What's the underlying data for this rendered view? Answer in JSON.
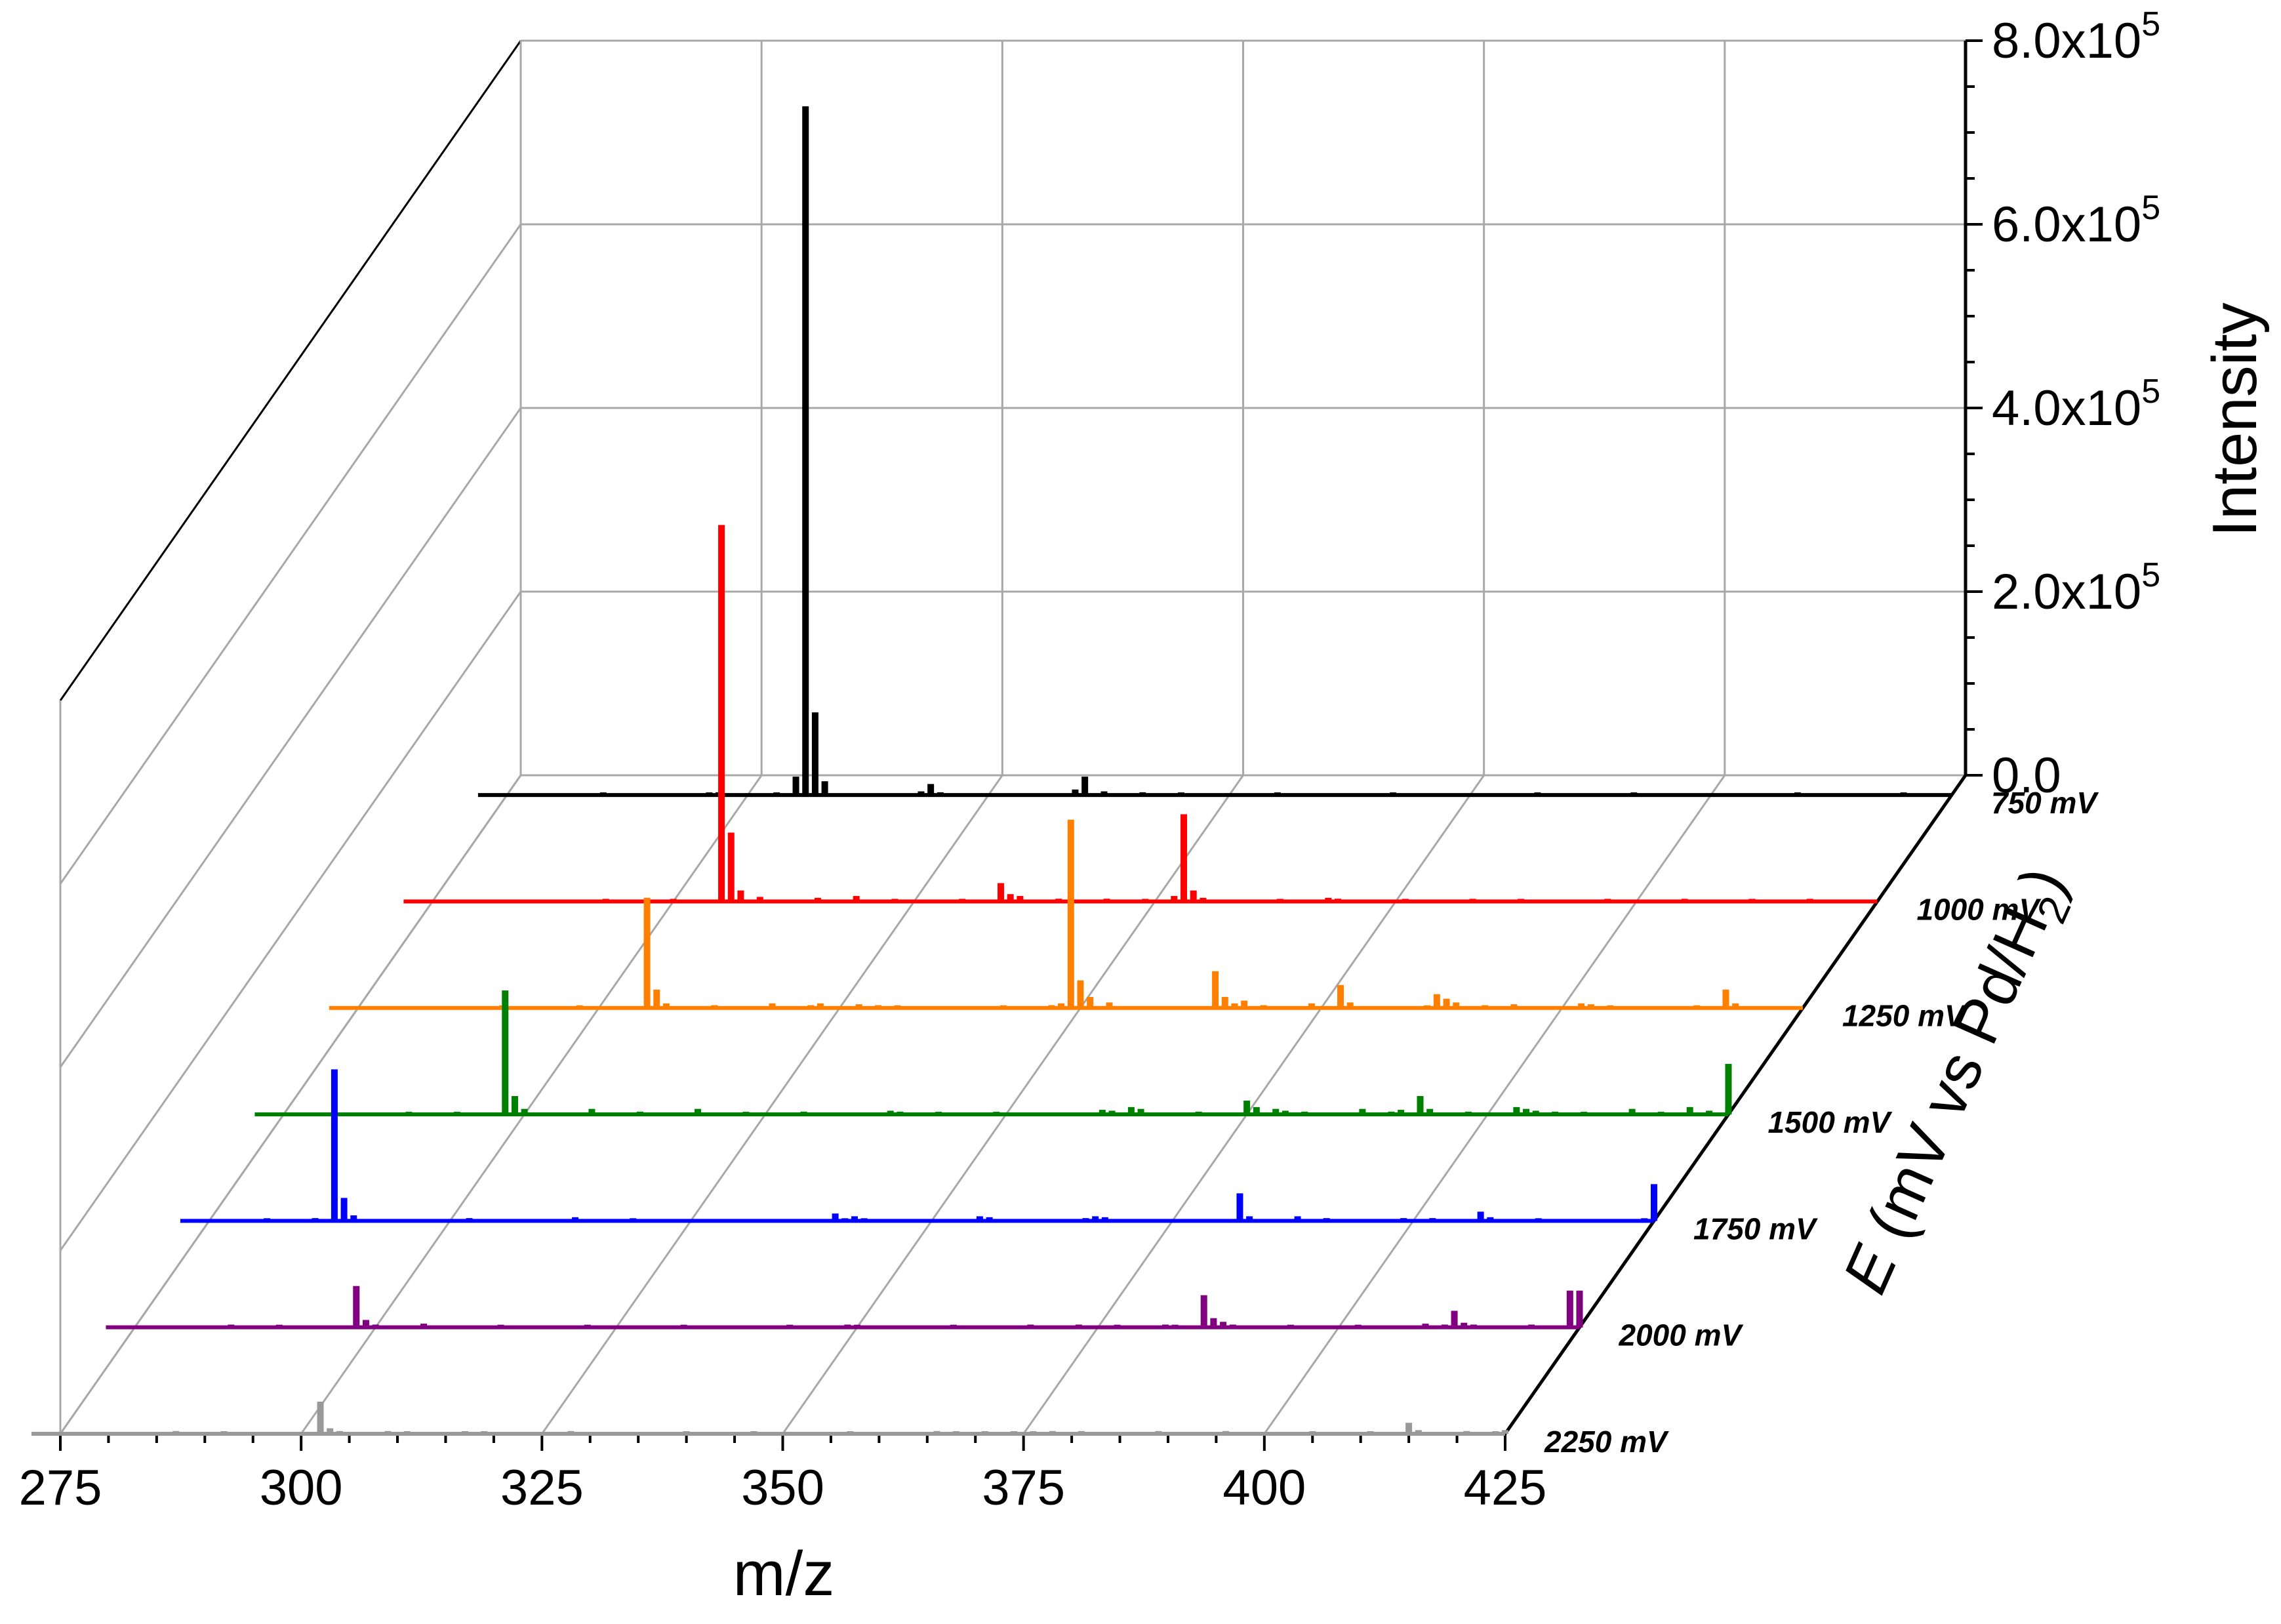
{
  "chart_data": {
    "type": "3d-waterfall-stick-spectrum",
    "xlabel": "m/z",
    "ylabel": "E (mV vs Pd/H2)",
    "zlabel": "Intensity",
    "x_ticks": [
      "275",
      "300",
      "325",
      "350",
      "375",
      "400",
      "425"
    ],
    "z_ticks": [
      "0.0",
      "2.0x10^5",
      "4.0x10^5",
      "6.0x10^5",
      "8.0x10^5"
    ],
    "xlim": [
      275,
      425
    ],
    "zlim": [
      0,
      800000
    ],
    "grid": true,
    "series": [
      {
        "name": "750 mV",
        "label": "750 mV",
        "color": "#000000",
        "peaks": [
          [
            285,
            2000
          ],
          [
            296,
            1500
          ],
          [
            297,
            3000
          ],
          [
            303,
            2500
          ],
          [
            305,
            20000
          ],
          [
            306,
            750000
          ],
          [
            307,
            90000
          ],
          [
            308,
            15000
          ],
          [
            318,
            4000
          ],
          [
            319,
            12000
          ],
          [
            320,
            3000
          ],
          [
            334,
            6000
          ],
          [
            335,
            20000
          ],
          [
            337,
            4000
          ],
          [
            341,
            3000
          ],
          [
            345,
            2500
          ],
          [
            355,
            2000
          ],
          [
            367,
            2000
          ],
          [
            382,
            2000
          ],
          [
            392,
            2000
          ],
          [
            409,
            2000
          ],
          [
            420,
            2000
          ]
        ]
      },
      {
        "name": "1000 mV",
        "label": "1000 mV",
        "color": "#ff0000",
        "peaks": [
          [
            293,
            2000
          ],
          [
            300,
            2000
          ],
          [
            305,
            410000
          ],
          [
            306,
            75000
          ],
          [
            307,
            12000
          ],
          [
            309,
            5000
          ],
          [
            315,
            4000
          ],
          [
            319,
            6000
          ],
          [
            323,
            2500
          ],
          [
            330,
            2000
          ],
          [
            334,
            20000
          ],
          [
            335,
            8000
          ],
          [
            336,
            6000
          ],
          [
            340,
            3000
          ],
          [
            345,
            3000
          ],
          [
            349,
            2000
          ],
          [
            352,
            6000
          ],
          [
            353,
            95000
          ],
          [
            354,
            12000
          ],
          [
            355,
            4000
          ],
          [
            363,
            2000
          ],
          [
            368,
            4000
          ],
          [
            369,
            3000
          ],
          [
            376,
            2000
          ],
          [
            383,
            2000
          ],
          [
            388,
            2500
          ],
          [
            397,
            2000
          ],
          [
            405,
            2000
          ],
          [
            412,
            2000
          ],
          [
            418,
            2000
          ]
        ]
      },
      {
        "name": "1250 mV",
        "label": "1250 mV",
        "color": "#ff8000",
        "peaks": [
          [
            290,
            2000
          ],
          [
            298,
            2000
          ],
          [
            305,
            120000
          ],
          [
            306,
            20000
          ],
          [
            307,
            5000
          ],
          [
            312,
            3000
          ],
          [
            318,
            5000
          ],
          [
            322,
            3000
          ],
          [
            323,
            5000
          ],
          [
            327,
            4000
          ],
          [
            329,
            3000
          ],
          [
            331,
            2500
          ],
          [
            342,
            2000
          ],
          [
            347,
            3000
          ],
          [
            348,
            5000
          ],
          [
            349,
            205000
          ],
          [
            350,
            30000
          ],
          [
            351,
            12000
          ],
          [
            353,
            6000
          ],
          [
            364,
            40000
          ],
          [
            365,
            12000
          ],
          [
            366,
            5000
          ],
          [
            367,
            8000
          ],
          [
            369,
            3000
          ],
          [
            374,
            5000
          ],
          [
            377,
            25000
          ],
          [
            378,
            6000
          ],
          [
            386,
            2000
          ],
          [
            387,
            15000
          ],
          [
            388,
            10000
          ],
          [
            389,
            6000
          ],
          [
            392,
            3000
          ],
          [
            395,
            4000
          ],
          [
            402,
            5000
          ],
          [
            403,
            4000
          ],
          [
            405,
            2000
          ],
          [
            414,
            2000
          ],
          [
            417,
            20000
          ],
          [
            418,
            5000
          ]
        ]
      },
      {
        "name": "1500 mV",
        "label": "1500 mV",
        "color": "#008000",
        "peaks": [
          [
            288,
            2000
          ],
          [
            293,
            2000
          ],
          [
            298,
            135000
          ],
          [
            299,
            20000
          ],
          [
            300,
            6000
          ],
          [
            307,
            6000
          ],
          [
            312,
            3000
          ],
          [
            318,
            6000
          ],
          [
            323,
            2000
          ],
          [
            329,
            3000
          ],
          [
            338,
            4000
          ],
          [
            339,
            3000
          ],
          [
            343,
            2500
          ],
          [
            349,
            2000
          ],
          [
            360,
            5000
          ],
          [
            361,
            4000
          ],
          [
            363,
            8000
          ],
          [
            364,
            6000
          ],
          [
            370,
            3000
          ],
          [
            375,
            15000
          ],
          [
            376,
            8000
          ],
          [
            378,
            6000
          ],
          [
            379,
            4000
          ],
          [
            381,
            3000
          ],
          [
            387,
            6000
          ],
          [
            390,
            3000
          ],
          [
            391,
            5000
          ],
          [
            393,
            20000
          ],
          [
            394,
            6000
          ],
          [
            398,
            3000
          ],
          [
            403,
            8000
          ],
          [
            404,
            6000
          ],
          [
            405,
            4000
          ],
          [
            407,
            3000
          ],
          [
            410,
            2000
          ],
          [
            415,
            6000
          ],
          [
            418,
            2000
          ],
          [
            421,
            8000
          ],
          [
            423,
            4000
          ],
          [
            432,
            6000
          ],
          [
            433,
            55000
          ],
          [
            434,
            8000
          ]
        ]
      },
      {
        "name": "1750 mV",
        "label": "1750 mV",
        "color": "#0000ff",
        "peaks": [
          [
            281,
            2000
          ],
          [
            286,
            3000
          ],
          [
            288,
            165000
          ],
          [
            289,
            25000
          ],
          [
            290,
            6000
          ],
          [
            302,
            3000
          ],
          [
            313,
            4000
          ],
          [
            319,
            2000
          ],
          [
            340,
            8000
          ],
          [
            341,
            2500
          ],
          [
            342,
            5000
          ],
          [
            343,
            2500
          ],
          [
            355,
            5000
          ],
          [
            356,
            4000
          ],
          [
            366,
            3000
          ],
          [
            367,
            5000
          ],
          [
            368,
            4000
          ],
          [
            382,
            30000
          ],
          [
            383,
            5000
          ],
          [
            388,
            5000
          ],
          [
            391,
            3000
          ],
          [
            399,
            3000
          ],
          [
            402,
            3000
          ],
          [
            407,
            10000
          ],
          [
            408,
            4000
          ],
          [
            413,
            2000
          ],
          [
            424,
            2000
          ],
          [
            426,
            4000
          ],
          [
            429,
            40000
          ],
          [
            430,
            6000
          ]
        ]
      },
      {
        "name": "2000 mV",
        "label": "2000 mV",
        "color": "#800080",
        "peaks": [
          [
            285,
            3000
          ],
          [
            290,
            2000
          ],
          [
            298,
            45000
          ],
          [
            299,
            8000
          ],
          [
            300,
            3000
          ],
          [
            305,
            4000
          ],
          [
            313,
            2000
          ],
          [
            322,
            2500
          ],
          [
            332,
            2000
          ],
          [
            343,
            2000
          ],
          [
            349,
            3000
          ],
          [
            350,
            2500
          ],
          [
            360,
            2000
          ],
          [
            368,
            3000
          ],
          [
            373,
            3000
          ],
          [
            377,
            2000
          ],
          [
            382,
            3000
          ],
          [
            383,
            2500
          ],
          [
            386,
            35000
          ],
          [
            387,
            10000
          ],
          [
            388,
            6000
          ],
          [
            389,
            3000
          ],
          [
            395,
            2000
          ],
          [
            402,
            2000
          ],
          [
            409,
            4000
          ],
          [
            411,
            3000
          ],
          [
            412,
            18000
          ],
          [
            413,
            5000
          ],
          [
            414,
            3000
          ],
          [
            420,
            3000
          ],
          [
            424,
            40000
          ],
          [
            425,
            6000
          ],
          [
            430,
            3000
          ],
          [
            432,
            2000
          ],
          [
            442,
            2500
          ],
          [
            443,
            8000
          ],
          [
            444,
            3000
          ],
          [
            446,
            6000
          ],
          [
            447,
            4000
          ],
          [
            448,
            3000
          ],
          [
            452,
            6000
          ],
          [
            455,
            2000
          ],
          [
            458,
            4000
          ],
          [
            461,
            3000
          ],
          [
            463,
            3000
          ],
          [
            464,
            6000
          ],
          [
            474,
            3000
          ],
          [
            476,
            40000
          ],
          [
            477,
            6000
          ],
          [
            478,
            3000
          ],
          [
            480,
            2000
          ]
        ]
      },
      {
        "name": "2250 mV",
        "label": "2250 mV",
        "color": "#999999",
        "peaks": [
          [
            287,
            3000
          ],
          [
            292,
            2000
          ],
          [
            302,
            35000
          ],
          [
            303,
            6000
          ],
          [
            304,
            3000
          ],
          [
            309,
            3000
          ],
          [
            311,
            2500
          ],
          [
            317,
            2500
          ],
          [
            319,
            2000
          ],
          [
            328,
            3000
          ],
          [
            340,
            2000
          ],
          [
            347,
            2000
          ],
          [
            357,
            2000
          ],
          [
            366,
            3000
          ],
          [
            368,
            2000
          ],
          [
            371,
            2500
          ],
          [
            374,
            2000
          ],
          [
            376,
            2000
          ],
          [
            378,
            3000
          ],
          [
            381,
            3000
          ],
          [
            389,
            3000
          ],
          [
            396,
            3000
          ],
          [
            405,
            2000
          ],
          [
            411,
            2000
          ],
          [
            415,
            12000
          ],
          [
            416,
            4000
          ],
          [
            421,
            3000
          ],
          [
            424,
            2000
          ],
          [
            428,
            2000
          ],
          [
            430,
            4000
          ],
          [
            434,
            2000
          ],
          [
            445,
            2500
          ],
          [
            455,
            2000
          ],
          [
            470,
            3000
          ],
          [
            482,
            2000
          ]
        ]
      }
    ]
  }
}
